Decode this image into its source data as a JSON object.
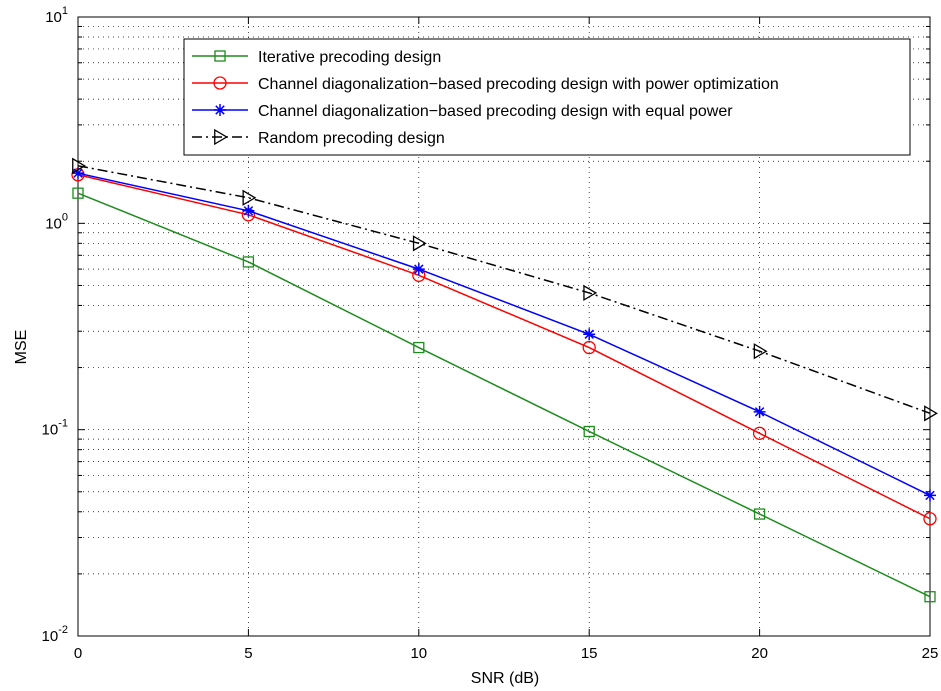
{
  "chart_data": {
    "type": "line",
    "title": "",
    "xlabel": "SNR (dB)",
    "ylabel": "MSE",
    "x": [
      0,
      5,
      10,
      15,
      20,
      25
    ],
    "xlim": [
      0,
      25
    ],
    "ylim": [
      0.01,
      10
    ],
    "yscale": "log",
    "grid": true,
    "x_ticks": [
      "0",
      "5",
      "10",
      "15",
      "20",
      "25"
    ],
    "y_ticks": [
      {
        "base": "10",
        "exp": "1",
        "value": 10
      },
      {
        "base": "10",
        "exp": "0",
        "value": 1
      },
      {
        "base": "10",
        "exp": "-1",
        "value": 0.1
      },
      {
        "base": "10",
        "exp": "-2",
        "value": 0.01
      }
    ],
    "legend_position": "top-right",
    "series": [
      {
        "name": "Iterative precoding design",
        "color": "#1e8c1e",
        "marker": "square",
        "dash": "solid",
        "values": [
          1.4,
          0.65,
          0.25,
          0.098,
          0.039,
          0.0155
        ]
      },
      {
        "name": "Channel diagonalization−based precoding design with power optimization",
        "color": "#ff0000",
        "marker": "circle",
        "dash": "solid",
        "values": [
          1.72,
          1.1,
          0.56,
          0.25,
          0.096,
          0.037
        ]
      },
      {
        "name": "Channel diagonalization−based precoding design with equal power",
        "color": "#0000ff",
        "marker": "star",
        "dash": "solid",
        "values": [
          1.75,
          1.15,
          0.6,
          0.29,
          0.122,
          0.048
        ]
      },
      {
        "name": "Random precoding design",
        "color": "#000000",
        "marker": "triangle-right",
        "dash": "dashdot",
        "values": [
          1.9,
          1.33,
          0.8,
          0.46,
          0.24,
          0.12
        ]
      }
    ]
  }
}
